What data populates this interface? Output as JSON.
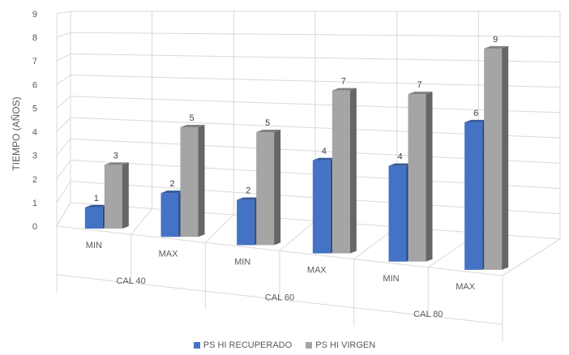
{
  "chart_data": {
    "type": "bar",
    "ylabel": "TIEMPO (AÑOS)",
    "ylim": [
      0,
      9
    ],
    "yticks": [
      "0",
      "1",
      "2",
      "3",
      "4",
      "5",
      "6",
      "7",
      "8",
      "9"
    ],
    "groups": [
      {
        "label": "CAL 40",
        "subcategories": [
          "MIN",
          "MAX"
        ]
      },
      {
        "label": "CAL 60",
        "subcategories": [
          "MIN",
          "MAX"
        ]
      },
      {
        "label": "CAL 80",
        "subcategories": [
          "MIN",
          "MAX"
        ]
      }
    ],
    "series": [
      {
        "name": "PS HI RECUPERADO",
        "color": "#4472C4",
        "values": [
          1,
          2,
          2,
          4,
          4,
          6
        ]
      },
      {
        "name": "PS HI VIRGEN",
        "color": "#A5A5A5",
        "values": [
          3,
          5,
          5,
          7,
          7,
          9
        ]
      }
    ],
    "grid": true,
    "legend_position": "bottom"
  }
}
